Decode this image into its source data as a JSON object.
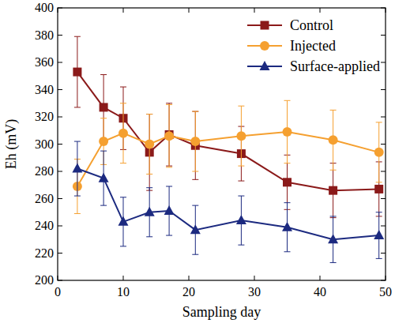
{
  "chart_data": {
    "type": "line",
    "x_label": "Sampling day",
    "y_label": "Eh (mV)",
    "x": [
      3,
      7,
      10,
      14,
      17,
      21,
      28,
      35,
      42,
      49
    ],
    "xlim": [
      0,
      50
    ],
    "xticks": [
      0,
      10,
      20,
      30,
      40,
      50
    ],
    "ylim": [
      200,
      400
    ],
    "yticks": [
      200,
      220,
      240,
      260,
      280,
      300,
      320,
      340,
      360,
      380,
      400
    ],
    "legend": "upper right",
    "grid": false,
    "series": [
      {
        "name": "Control",
        "color": "#8b1a1a",
        "marker": "square",
        "values": [
          353,
          327,
          319,
          294,
          307,
          299,
          293,
          272,
          266,
          267
        ],
        "errors": [
          26,
          24,
          23,
          28,
          23,
          25,
          20,
          20,
          20,
          20
        ]
      },
      {
        "name": "Injected",
        "color": "#f5a030",
        "marker": "circle",
        "values": [
          269,
          302,
          308,
          300,
          306,
          302,
          306,
          309,
          303,
          294
        ],
        "errors": [
          20,
          17,
          22,
          22,
          23,
          22,
          22,
          23,
          22,
          22
        ]
      },
      {
        "name": "Surface-applied",
        "color": "#1c2a80",
        "marker": "triangle",
        "values": [
          282,
          275,
          243,
          250,
          251,
          237,
          244,
          239,
          230,
          233
        ],
        "errors": [
          20,
          20,
          18,
          18,
          18,
          18,
          18,
          18,
          17,
          17
        ]
      }
    ]
  }
}
